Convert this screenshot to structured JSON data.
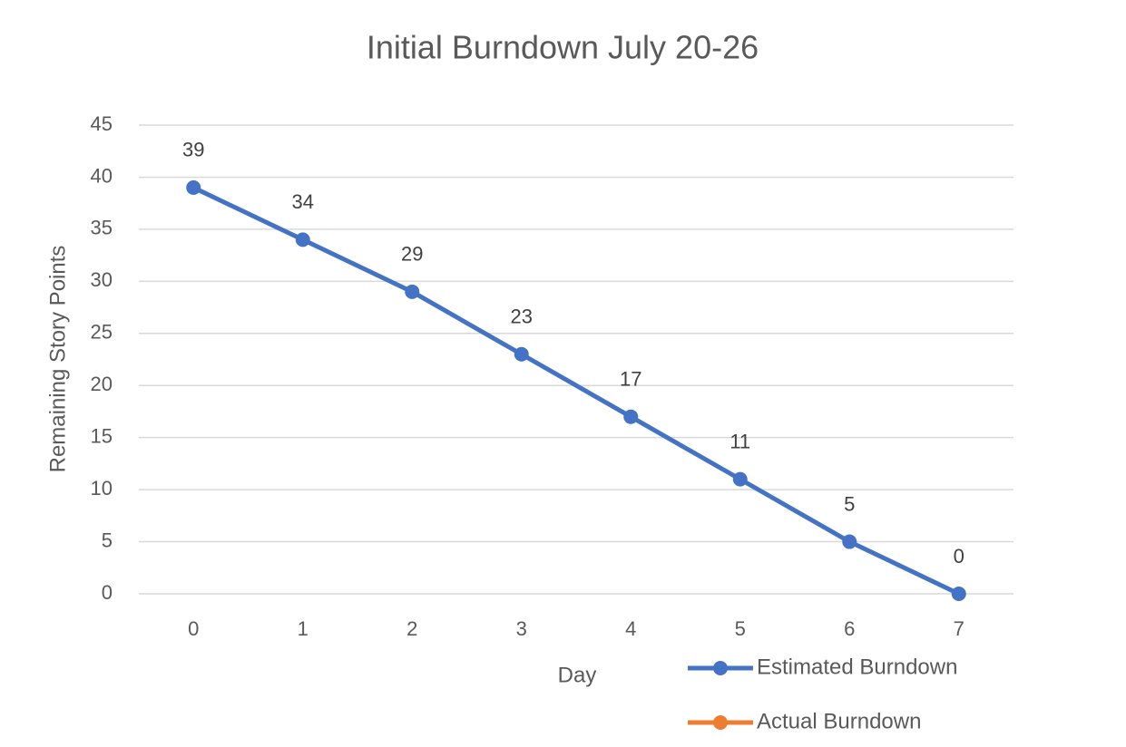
{
  "chart_data": {
    "type": "line",
    "title": "Initial Burndown July 20-26",
    "x_label": "Day",
    "y_label": "Remaining Story Points",
    "categories": [
      "0",
      "1",
      "2",
      "3",
      "4",
      "5",
      "6",
      "7"
    ],
    "series": [
      {
        "name": "Estimated Burndown",
        "color": "#4472c4",
        "values": [
          39,
          34,
          29,
          23,
          17,
          11,
          5,
          0
        ]
      },
      {
        "name": "Actual Burndown",
        "color": "#ed7d31",
        "values": [
          null,
          null,
          null,
          null,
          null,
          null,
          null,
          null
        ]
      }
    ],
    "ylim": [
      0,
      45
    ],
    "yticks": [
      0,
      5,
      10,
      15,
      20,
      25,
      30,
      35,
      40,
      45
    ],
    "grid": true,
    "legend": "bottom-right",
    "data_labels": true
  }
}
